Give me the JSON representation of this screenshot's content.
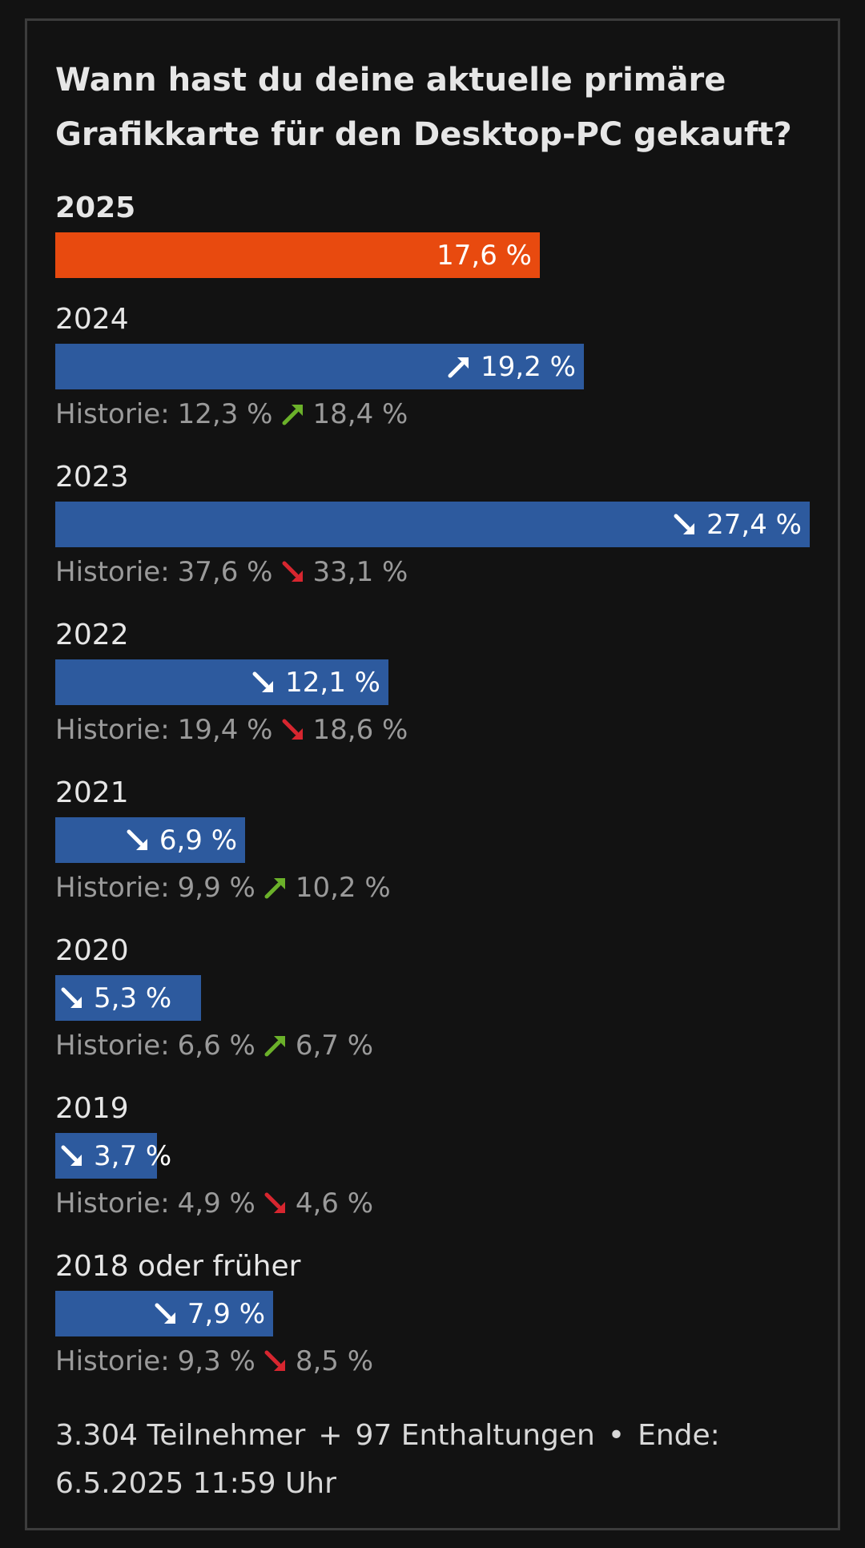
{
  "title_line1": "Wann hast du deine aktuelle primäre",
  "title_line2": "Grafikkarte für den Desktop-PC gekauft?",
  "history_prefix": "Historie:",
  "colors": {
    "current_bar": "#e84a0f",
    "bar": "#2d5a9e",
    "trend_up": "#6bb12a",
    "trend_down": "#d7262f",
    "arrow_in_bar": "#ffffff"
  },
  "chart_data": {
    "type": "bar",
    "orientation": "horizontal",
    "title": "Wann hast du deine aktuelle primäre Grafikkarte für den Desktop-PC gekauft?",
    "unit": "%",
    "categories": [
      "2025",
      "2024",
      "2023",
      "2022",
      "2021",
      "2020",
      "2019",
      "2018 oder früher"
    ],
    "values": [
      17.6,
      19.2,
      27.4,
      12.1,
      6.9,
      5.3,
      3.7,
      7.9
    ],
    "value_labels": [
      "17,6 %",
      "19,2 %",
      "27,4 %",
      "12,1 %",
      "6,9 %",
      "5,3 %",
      "3,7 %",
      "7,9 %"
    ],
    "trend": [
      null,
      "up",
      "down",
      "down",
      "down",
      "down",
      "down",
      "down"
    ],
    "highlight": [
      true,
      false,
      false,
      false,
      false,
      false,
      false,
      false
    ],
    "history": [
      null,
      {
        "from": "12,3 %",
        "to": "18,4 %",
        "trend": "up"
      },
      {
        "from": "37,6 %",
        "to": "33,1 %",
        "trend": "down"
      },
      {
        "from": "19,4 %",
        "to": "18,6 %",
        "trend": "down"
      },
      {
        "from": "9,9 %",
        "to": "10,2 %",
        "trend": "up"
      },
      {
        "from": "6,6 %",
        "to": "6,7 %",
        "trend": "up"
      },
      {
        "from": "4,9 %",
        "to": "4,6 %",
        "trend": "down"
      },
      {
        "from": "9,3 %",
        "to": "8,5 %",
        "trend": "down"
      }
    ],
    "xlim": [
      0,
      27.4
    ]
  },
  "footer": {
    "participants": "3.304 Teilnehmer",
    "plus": "+",
    "abstentions": "97 Enthaltungen",
    "dot": "•",
    "end_label": "Ende:",
    "end_date": "6.5.2025 11:59 Uhr"
  }
}
